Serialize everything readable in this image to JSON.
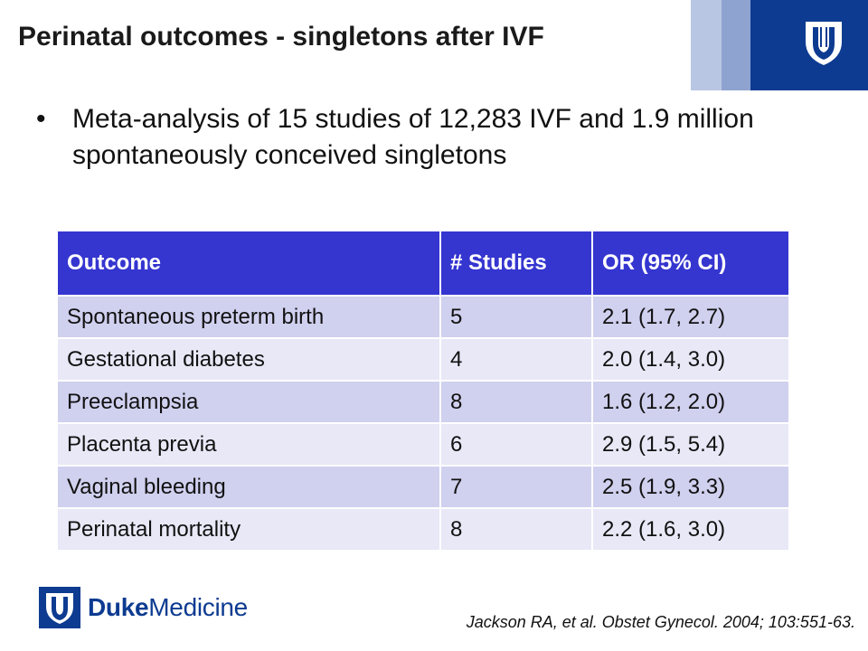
{
  "slide": {
    "title": "Perinatal outcomes - singletons after IVF",
    "bullet": "Meta-analysis of 15 studies of 12,283 IVF and 1.9 million spontaneously conceived singletons",
    "bullet_marker": "•"
  },
  "table": {
    "headers": [
      "Outcome",
      "# Studies",
      "OR (95% CI)"
    ],
    "rows": [
      [
        "Spontaneous preterm birth",
        "5",
        "2.1 (1.7, 2.7)"
      ],
      [
        "Gestational diabetes",
        "4",
        "2.0 (1.4, 3.0)"
      ],
      [
        "Preeclampsia",
        "8",
        "1.6 (1.2, 2.0)"
      ],
      [
        "Placenta previa",
        "6",
        "2.9 (1.5, 5.4)"
      ],
      [
        "Vaginal bleeding",
        "7",
        "2.5 (1.9, 3.3)"
      ],
      [
        "Perinatal mortality",
        "8",
        "2.2 (1.6, 3.0)"
      ]
    ]
  },
  "logo": {
    "bold": "Duke",
    "regular": "Medicine"
  },
  "citation": "Jackson RA, et al. Obstet Gynecol. 2004; 103:551-63.",
  "colors": {
    "header_fill": "#3535d0",
    "row_odd": "#d0d0ef",
    "row_even": "#e8e8f7",
    "duke_blue": "#0d3b91"
  },
  "icons": {
    "header_emblem": "duke-shield-icon",
    "logo_emblem": "duke-shield-icon"
  }
}
